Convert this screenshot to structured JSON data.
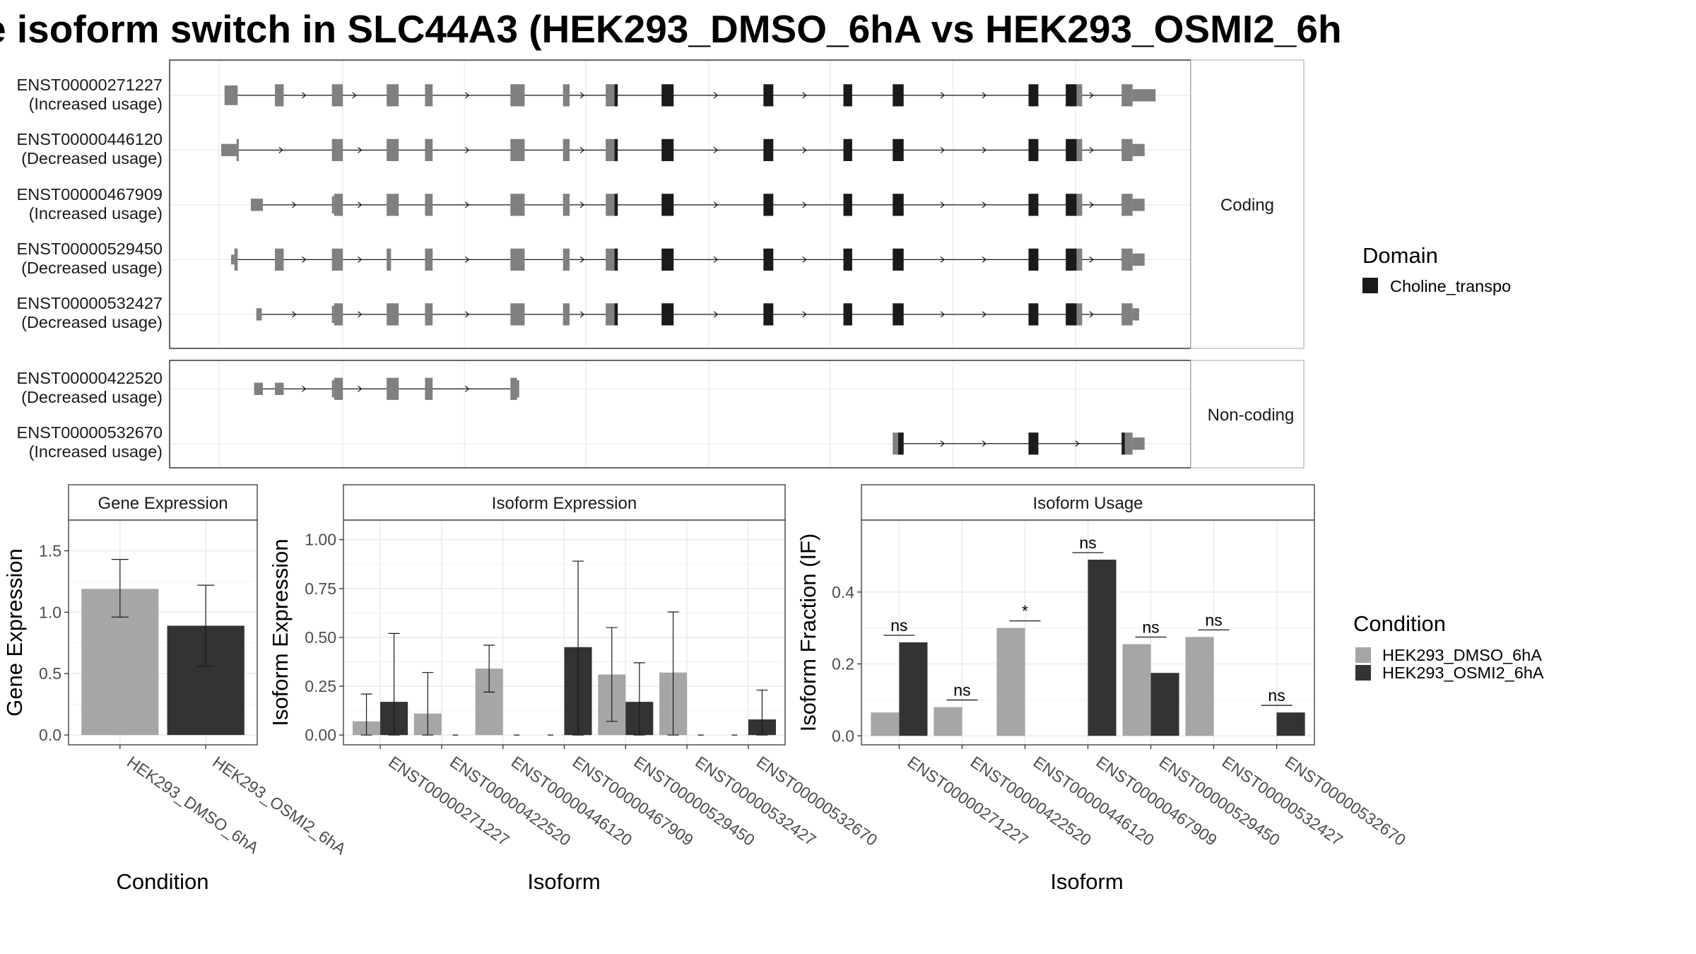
{
  "title": "e isoform switch in SLC44A3 (HEK293_DMSO_6hA vs HEK293_OSMI2_6h",
  "colors": {
    "domain_fill": "#1a1a1a",
    "exon_fill": "#808080",
    "dmso_fill": "#a6a6a6",
    "osmi2_fill": "#333333"
  },
  "structure": {
    "panels": [
      {
        "label": "Coding",
        "isoforms": [
          {
            "id": "ENST00000271227",
            "usage": "(Increased usage)"
          },
          {
            "id": "ENST00000446120",
            "usage": "(Decreased usage)"
          },
          {
            "id": "ENST00000467909",
            "usage": "(Increased usage)"
          },
          {
            "id": "ENST00000529450",
            "usage": "(Decreased usage)"
          },
          {
            "id": "ENST00000532427",
            "usage": "(Decreased usage)"
          }
        ]
      },
      {
        "label": "Non-coding",
        "isoforms": [
          {
            "id": "ENST00000422520",
            "usage": "(Decreased usage)"
          },
          {
            "id": "ENST00000532670",
            "usage": "(Increased usage)"
          }
        ]
      }
    ],
    "legend": {
      "title": "Domain",
      "items": [
        "Choline_transpo"
      ]
    }
  },
  "chart_data": [
    {
      "type": "bar",
      "title": "Gene Expression",
      "xlabel": "Condition",
      "ylabel": "Gene Expression",
      "ylim": [
        -0.08,
        1.75
      ],
      "yticks": [
        0.0,
        0.5,
        1.0,
        1.5
      ],
      "ytick_labels": [
        "0.0",
        "0.5",
        "1.0",
        "1.5"
      ],
      "categories": [
        "HEK293_DMSO_6hA",
        "HEK293_OSMI2_6hA"
      ],
      "values": [
        1.19,
        0.89
      ],
      "error_low": [
        0.96,
        0.56
      ],
      "error_high": [
        1.43,
        1.22
      ]
    },
    {
      "type": "bar",
      "title": "Isoform Expression",
      "xlabel": "Isoform",
      "ylabel": "Isoform Expression",
      "ylim": [
        -0.05,
        1.1
      ],
      "yticks": [
        0.0,
        0.25,
        0.5,
        0.75,
        1.0
      ],
      "ytick_labels": [
        "0.00",
        "0.25",
        "0.50",
        "0.75",
        "1.00"
      ],
      "categories": [
        "ENST00000271227",
        "ENST00000422520",
        "ENST00000446120",
        "ENST00000467909",
        "ENST00000529450",
        "ENST00000532427",
        "ENST00000532670"
      ],
      "series": [
        {
          "name": "HEK293_DMSO_6hA",
          "values": [
            0.07,
            0.11,
            0.34,
            0.0,
            0.31,
            0.32,
            0.0
          ],
          "error_low": [
            0.0,
            0.0,
            0.22,
            null,
            0.07,
            0.0,
            null
          ],
          "error_high": [
            0.21,
            0.32,
            0.46,
            null,
            0.55,
            0.63,
            null
          ]
        },
        {
          "name": "HEK293_OSMI2_6hA",
          "values": [
            0.17,
            0.0,
            0.0,
            0.45,
            0.17,
            0.0,
            0.08
          ],
          "error_low": [
            0.0,
            null,
            null,
            0.0,
            0.0,
            null,
            0.0
          ],
          "error_high": [
            0.52,
            null,
            null,
            0.89,
            0.37,
            null,
            0.23
          ]
        }
      ]
    },
    {
      "type": "bar",
      "title": "Isoform Usage",
      "xlabel": "Isoform",
      "ylabel": "Isoform Fraction (IF)",
      "ylim": [
        -0.025,
        0.6
      ],
      "yticks": [
        0.0,
        0.2,
        0.4
      ],
      "ytick_labels": [
        "0.0",
        "0.2",
        "0.4"
      ],
      "categories": [
        "ENST00000271227",
        "ENST00000422520",
        "ENST00000446120",
        "ENST00000467909",
        "ENST00000529450",
        "ENST00000532427",
        "ENST00000532670"
      ],
      "series": [
        {
          "name": "HEK293_DMSO_6hA",
          "values": [
            0.065,
            0.08,
            0.3,
            0.0,
            0.255,
            0.275,
            0.0
          ]
        },
        {
          "name": "HEK293_OSMI2_6hA",
          "values": [
            0.26,
            0.0,
            0.0,
            0.49,
            0.175,
            0.0,
            0.065
          ]
        }
      ],
      "significance": [
        "ns",
        "ns",
        "*",
        "ns",
        "ns",
        "ns",
        "ns"
      ]
    }
  ],
  "condition_legend": {
    "title": "Condition",
    "items": [
      "HEK293_DMSO_6hA",
      "HEK293_OSMI2_6hA"
    ]
  }
}
